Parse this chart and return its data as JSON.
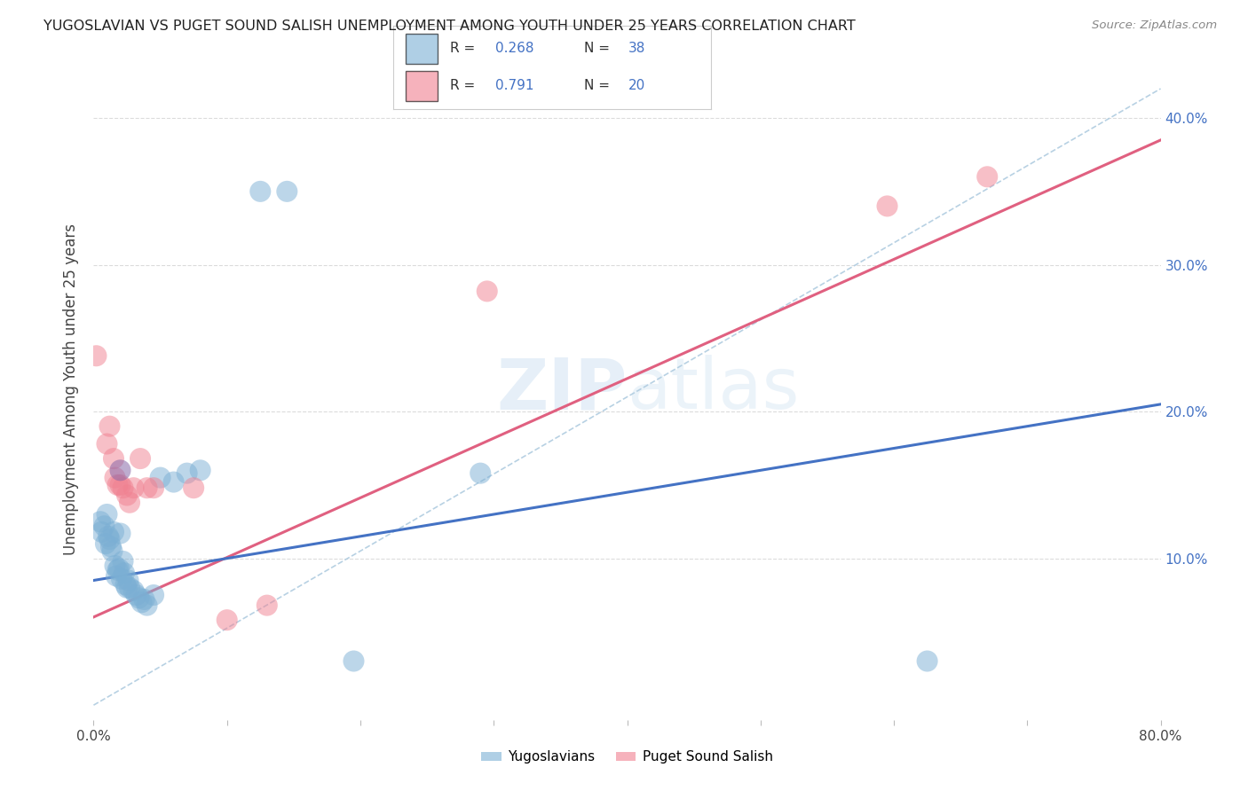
{
  "title": "YUGOSLAVIAN VS PUGET SOUND SALISH UNEMPLOYMENT AMONG YOUTH UNDER 25 YEARS CORRELATION CHART",
  "source": "Source: ZipAtlas.com",
  "ylabel": "Unemployment Among Youth under 25 years",
  "watermark": "ZIPatlas",
  "xlim": [
    0.0,
    0.8
  ],
  "ylim": [
    -0.01,
    0.44
  ],
  "xtick_positions": [
    0.0,
    0.1,
    0.2,
    0.3,
    0.4,
    0.5,
    0.6,
    0.7,
    0.8
  ],
  "xtick_labels": [
    "0.0%",
    "",
    "",
    "",
    "",
    "",
    "",
    "",
    "80.0%"
  ],
  "ytick_positions": [
    0.1,
    0.2,
    0.3,
    0.4
  ],
  "ytick_labels_right": [
    "10.0%",
    "20.0%",
    "30.0%",
    "40.0%"
  ],
  "blue_scatter": [
    [
      0.005,
      0.125
    ],
    [
      0.006,
      0.118
    ],
    [
      0.008,
      0.122
    ],
    [
      0.009,
      0.11
    ],
    [
      0.01,
      0.13
    ],
    [
      0.011,
      0.115
    ],
    [
      0.012,
      0.113
    ],
    [
      0.013,
      0.108
    ],
    [
      0.014,
      0.105
    ],
    [
      0.015,
      0.118
    ],
    [
      0.016,
      0.095
    ],
    [
      0.017,
      0.088
    ],
    [
      0.018,
      0.092
    ],
    [
      0.019,
      0.093
    ],
    [
      0.02,
      0.117
    ],
    [
      0.021,
      0.086
    ],
    [
      0.022,
      0.098
    ],
    [
      0.023,
      0.09
    ],
    [
      0.024,
      0.082
    ],
    [
      0.025,
      0.08
    ],
    [
      0.026,
      0.085
    ],
    [
      0.027,
      0.08
    ],
    [
      0.03,
      0.078
    ],
    [
      0.032,
      0.075
    ],
    [
      0.034,
      0.073
    ],
    [
      0.036,
      0.07
    ],
    [
      0.038,
      0.072
    ],
    [
      0.04,
      0.068
    ],
    [
      0.045,
      0.075
    ],
    [
      0.05,
      0.155
    ],
    [
      0.06,
      0.152
    ],
    [
      0.07,
      0.158
    ],
    [
      0.08,
      0.16
    ],
    [
      0.125,
      0.35
    ],
    [
      0.145,
      0.35
    ],
    [
      0.195,
      0.03
    ],
    [
      0.29,
      0.158
    ],
    [
      0.625,
      0.03
    ]
  ],
  "pink_scatter": [
    [
      0.002,
      0.238
    ],
    [
      0.01,
      0.178
    ],
    [
      0.012,
      0.19
    ],
    [
      0.015,
      0.168
    ],
    [
      0.016,
      0.155
    ],
    [
      0.018,
      0.15
    ],
    [
      0.02,
      0.15
    ],
    [
      0.022,
      0.148
    ],
    [
      0.025,
      0.143
    ],
    [
      0.027,
      0.138
    ],
    [
      0.03,
      0.148
    ],
    [
      0.035,
      0.168
    ],
    [
      0.04,
      0.148
    ],
    [
      0.045,
      0.148
    ],
    [
      0.075,
      0.148
    ],
    [
      0.1,
      0.058
    ],
    [
      0.13,
      0.068
    ],
    [
      0.295,
      0.282
    ],
    [
      0.595,
      0.34
    ],
    [
      0.67,
      0.36
    ]
  ],
  "blue_line_x": [
    0.0,
    0.8
  ],
  "blue_line_y": [
    0.085,
    0.205
  ],
  "pink_line_x": [
    0.0,
    0.8
  ],
  "pink_line_y": [
    0.06,
    0.385
  ],
  "dashed_line_x": [
    0.0,
    0.8
  ],
  "dashed_line_y": [
    0.0,
    0.42
  ],
  "blue_scatter_color": "#7bafd4",
  "pink_scatter_color": "#f08090",
  "blue_line_color": "#4472c4",
  "pink_line_color": "#e06080",
  "dashed_line_color": "#b0cce0",
  "purple_point": [
    0.02,
    0.16
  ],
  "background_color": "#ffffff",
  "grid_color": "#cccccc"
}
